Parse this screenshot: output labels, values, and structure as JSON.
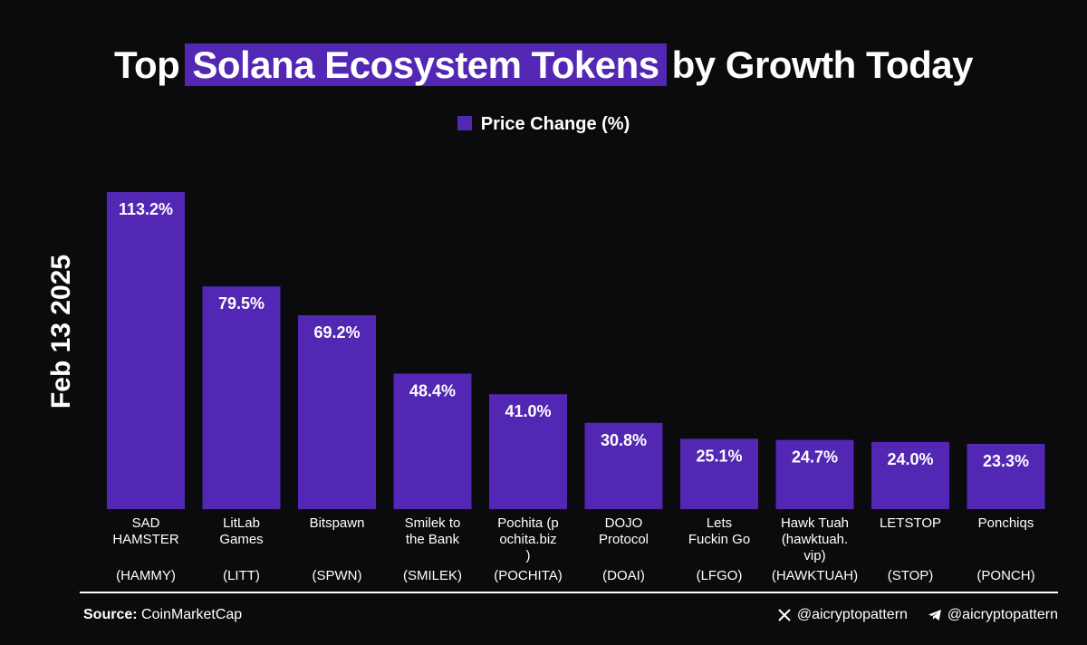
{
  "title": {
    "prefix": "Top",
    "highlight": "Solana Ecosystem Tokens",
    "suffix": "by Growth Today"
  },
  "legend_label": "Price Change (%)",
  "date": "Feb 13 2025",
  "footer": {
    "source_label": "Source:",
    "source_value": "CoinMarketCap",
    "x_handle": "@aicryptopattern",
    "telegram_handle": "@aicryptopattern"
  },
  "colors": {
    "bar": "#5227b3",
    "background": "#0b0b0d",
    "text": "#ffffff"
  },
  "icons": [
    "x-logo-icon",
    "telegram-icon"
  ],
  "chart_data": {
    "type": "bar",
    "series": [
      {
        "name": "Price Change (%)",
        "values": [
          113.2,
          79.5,
          69.2,
          48.4,
          41.0,
          30.8,
          25.1,
          24.7,
          24.0,
          23.3
        ]
      }
    ],
    "value_labels": [
      "113.2%",
      "79.5%",
      "69.2%",
      "48.4%",
      "41.0%",
      "30.8%",
      "25.1%",
      "24.7%",
      "24.0%",
      "23.3%"
    ],
    "categories": [
      {
        "name_lines": [
          "SAD",
          "HAMSTER"
        ],
        "ticker": "(HAMMY)"
      },
      {
        "name_lines": [
          "LitLab",
          "Games"
        ],
        "ticker": "(LITT)"
      },
      {
        "name_lines": [
          "Bitspawn"
        ],
        "ticker": "(SPWN)"
      },
      {
        "name_lines": [
          "Smilek to",
          "the Bank"
        ],
        "ticker": "(SMILEK)"
      },
      {
        "name_lines": [
          "Pochita (p",
          "ochita.biz",
          ")"
        ],
        "ticker": "(POCHITA)"
      },
      {
        "name_lines": [
          "DOJO",
          "Protocol"
        ],
        "ticker": "(DOAI)"
      },
      {
        "name_lines": [
          "Lets",
          "Fuckin Go"
        ],
        "ticker": "(LFGO)"
      },
      {
        "name_lines": [
          "Hawk Tuah",
          "(hawktuah.",
          "vip)"
        ],
        "ticker": "(HAWKTUAH)"
      },
      {
        "name_lines": [
          "LETSTOP"
        ],
        "ticker": "(STOP)"
      },
      {
        "name_lines": [
          "Ponchiqs"
        ],
        "ticker": "(PONCH)"
      }
    ],
    "ylim": [
      0,
      113.2
    ],
    "grid": false,
    "legend_position": "top-center"
  }
}
